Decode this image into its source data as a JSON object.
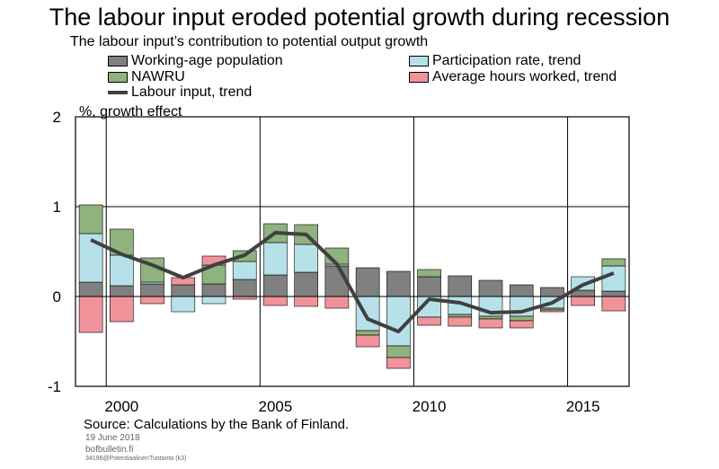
{
  "chart_data": {
    "type": "bar",
    "title": "The labour input eroded potential growth during recession",
    "subtitle": "The labour input’s contribution to potential output growth",
    "ylabel": "%, growth effect",
    "ylim": [
      -1,
      2
    ],
    "y_ticks": [
      "2",
      "1",
      "0",
      "-1"
    ],
    "x_tick_labels": [
      {
        "label": "2000",
        "year": 2000
      },
      {
        "label": "2005",
        "year": 2005
      },
      {
        "label": "2010",
        "year": 2010
      },
      {
        "label": "2015",
        "year": 2015
      }
    ],
    "years": [
      1999,
      2000,
      2001,
      2002,
      2003,
      2004,
      2005,
      2006,
      2007,
      2008,
      2009,
      2010,
      2011,
      2012,
      2013,
      2014,
      2015,
      2016
    ],
    "series": [
      {
        "name": "Working-age population",
        "color": "#808080",
        "values": [
          0.16,
          0.12,
          0.14,
          0.13,
          0.14,
          0.19,
          0.24,
          0.27,
          0.34,
          0.32,
          0.28,
          0.22,
          0.23,
          0.18,
          0.13,
          0.1,
          0.07,
          0.06
        ]
      },
      {
        "name": "Participation rate, trend",
        "color": "#b7e1e8",
        "values": [
          0.54,
          0.34,
          0.02,
          -0.17,
          -0.08,
          0.2,
          0.36,
          0.31,
          0.02,
          -0.38,
          -0.55,
          -0.23,
          -0.2,
          -0.22,
          -0.22,
          -0.13,
          0.15,
          0.28
        ]
      },
      {
        "name": "NAWRU",
        "color": "#8fb27e",
        "values": [
          0.32,
          0.29,
          0.27,
          0.0,
          0.21,
          0.12,
          0.21,
          0.22,
          0.18,
          -0.05,
          -0.13,
          0.08,
          -0.03,
          -0.03,
          -0.05,
          -0.02,
          0.0,
          0.08
        ]
      },
      {
        "name": "Average hours worked, trend",
        "color": "#f0939a",
        "values": [
          -0.4,
          -0.28,
          -0.08,
          0.08,
          0.1,
          -0.03,
          -0.1,
          -0.11,
          -0.13,
          -0.13,
          -0.12,
          -0.09,
          -0.1,
          -0.1,
          -0.08,
          -0.02,
          -0.1,
          -0.16
        ]
      },
      {
        "name": "Labour input, trend",
        "type": "line",
        "color": "#404040",
        "values": [
          0.63,
          0.47,
          0.35,
          0.21,
          0.35,
          0.46,
          0.71,
          0.69,
          0.36,
          -0.25,
          -0.39,
          -0.03,
          -0.07,
          -0.18,
          -0.17,
          -0.07,
          0.13,
          0.26
        ]
      }
    ],
    "grid": true,
    "legend_placement": "top"
  },
  "source": "Source: Calculations by the Bank of Finland.",
  "footer": {
    "date": "19 June 2018",
    "site": "bofbulletin.fi",
    "code": "34196@PotentiaalinenTuotanto (k3)"
  }
}
